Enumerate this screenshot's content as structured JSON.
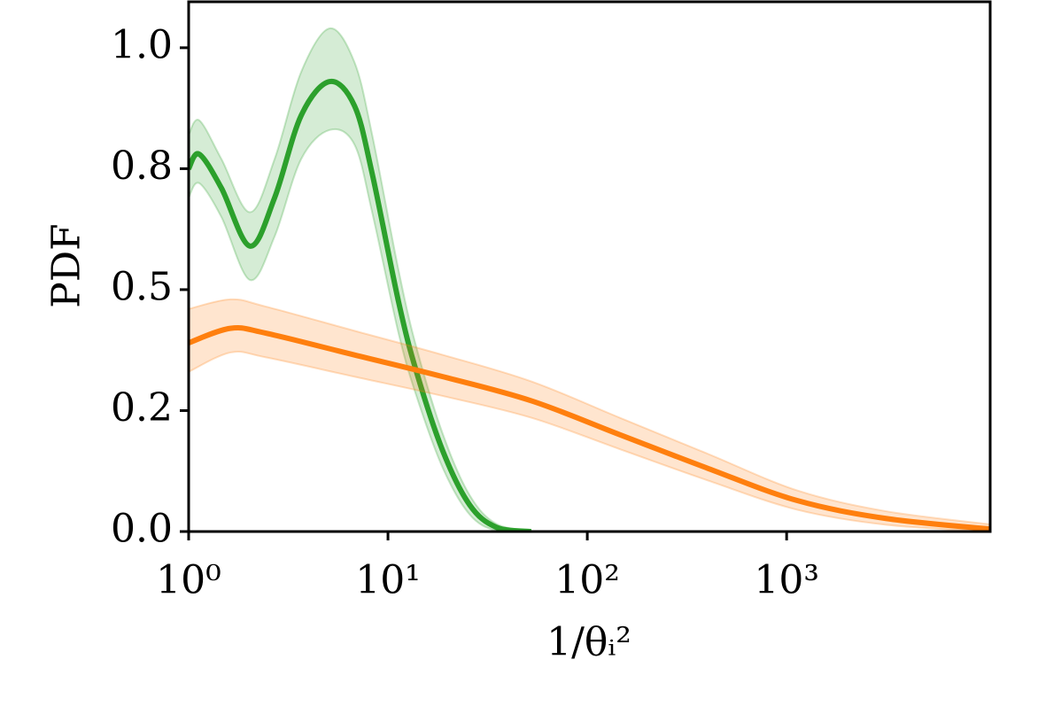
{
  "chart_data": {
    "type": "line",
    "xlabel": "1/θᵢ²",
    "ylabel": "PDF",
    "xscale": "log",
    "xlim": [
      1,
      10500
    ],
    "ylim": [
      0,
      1.095
    ],
    "xticks": [
      {
        "value": 1,
        "label": "10⁰"
      },
      {
        "value": 10,
        "label": "10¹"
      },
      {
        "value": 100,
        "label": "10²"
      },
      {
        "value": 1000,
        "label": "10³"
      }
    ],
    "yticks": [
      {
        "value": 0,
        "label": "0.0"
      },
      {
        "value": 0.25,
        "label": "0.2"
      },
      0.5,
      {
        "value": 0.75,
        "label": "0.8"
      },
      {
        "value": 1,
        "label": "1.0"
      }
    ],
    "grid": false,
    "series": [
      {
        "color": "#2ca02c",
        "x": [
          1,
          1.13,
          1.46,
          2.03,
          2.7,
          3.67,
          5.1,
          6.79,
          8.33,
          11.3,
          13.9,
          18.9,
          25.7,
          34.9,
          52.2
        ],
        "values": [
          0.75,
          0.78,
          0.71,
          0.59,
          0.69,
          0.86,
          0.93,
          0.88,
          0.74,
          0.475,
          0.33,
          0.165,
          0.055,
          0.009,
          0
        ],
        "lower": [
          0.69,
          0.72,
          0.65,
          0.52,
          0.61,
          0.77,
          0.83,
          0.8,
          0.66,
          0.41,
          0.28,
          0.13,
          0.035,
          0.002,
          0
        ],
        "upper": [
          0.82,
          0.85,
          0.77,
          0.66,
          0.77,
          0.95,
          1.04,
          0.97,
          0.82,
          0.54,
          0.38,
          0.2,
          0.075,
          0.016,
          0.002
        ]
      },
      {
        "color": "#ff7f0e",
        "x": [
          1,
          1.62,
          2.44,
          6.79,
          18.9,
          52.6,
          146,
          406,
          1130,
          3150,
          10500
        ],
        "values": [
          0.39,
          0.42,
          0.41,
          0.365,
          0.32,
          0.27,
          0.2,
          0.13,
          0.064,
          0.027,
          0.005
        ],
        "lower": [
          0.33,
          0.37,
          0.36,
          0.32,
          0.28,
          0.235,
          0.17,
          0.105,
          0.045,
          0.014,
          0
        ],
        "upper": [
          0.46,
          0.48,
          0.465,
          0.415,
          0.365,
          0.31,
          0.235,
          0.16,
          0.085,
          0.042,
          0.015
        ]
      }
    ]
  }
}
